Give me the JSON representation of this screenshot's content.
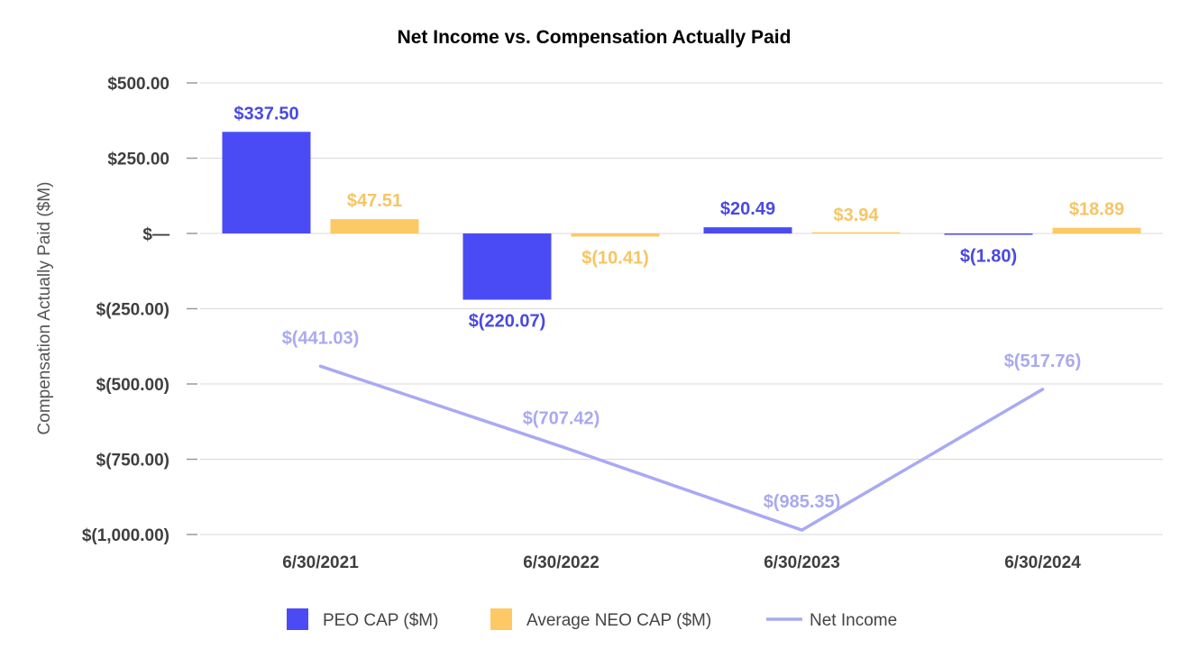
{
  "chart_data": {
    "type": "bar",
    "title": "Net Income vs. Compensation Actually Paid",
    "xlabel": "",
    "ylabel": "Compensation Actually Paid ($M)",
    "ylim": [
      -1000,
      500
    ],
    "yticks": [
      500,
      250,
      0,
      -250,
      -500,
      -750,
      -1000
    ],
    "ytick_labels": [
      "$500.00",
      "$250.00",
      "$—",
      "$(250.00)",
      "$(500.00)",
      "$(750.00)",
      "$(1,000.00)"
    ],
    "categories": [
      "6/30/2021",
      "6/30/2022",
      "6/30/2023",
      "6/30/2024"
    ],
    "series": [
      {
        "name": "PEO CAP ($M)",
        "kind": "bar",
        "color": "#4b4bf5",
        "label_color": "#4a4ae0",
        "values": [
          337.5,
          -220.07,
          20.49,
          -1.8
        ],
        "labels": [
          "$337.50",
          "$(220.07)",
          "$20.49",
          "$(1.80)"
        ]
      },
      {
        "name": "Average NEO CAP ($M)",
        "kind": "bar",
        "color": "#fdc964",
        "label_color": "#f6c564",
        "values": [
          47.51,
          -10.41,
          3.94,
          18.89
        ],
        "labels": [
          "$47.51",
          "$(10.41)",
          "$3.94",
          "$18.89"
        ]
      },
      {
        "name": "Net Income",
        "kind": "line",
        "color": "#a9a9f4",
        "label_color": "#a9a9f0",
        "values": [
          -441.03,
          -707.42,
          -985.35,
          -517.76
        ],
        "labels": [
          "$(441.03)",
          "$(707.42)",
          "$(985.35)",
          "$(517.76)"
        ]
      }
    ],
    "legend_position": "bottom",
    "grid": true
  }
}
